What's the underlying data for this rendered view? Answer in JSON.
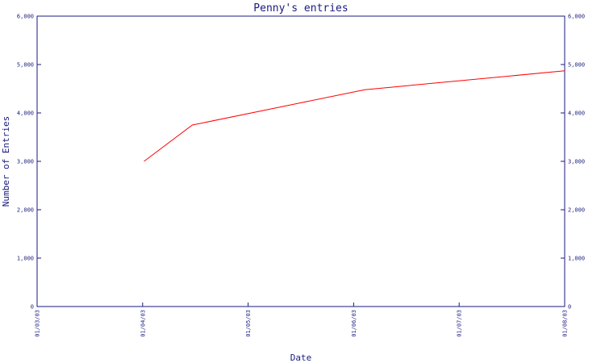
{
  "chart_data": {
    "type": "line",
    "title": "Penny's entries",
    "xlabel": "Date",
    "ylabel": "Number of Entries",
    "x_ticks": [
      "01/03/03",
      "01/04/03",
      "01/05/03",
      "01/06/03",
      "01/07/03",
      "01/08/03"
    ],
    "y_ticks": [
      "0",
      "1,000",
      "2,000",
      "3,000",
      "4,000",
      "5,000",
      "6,000"
    ],
    "ylim": [
      0,
      6000
    ],
    "xlim": [
      "2003-03-01",
      "2003-08-01"
    ],
    "grid": false,
    "colors": {
      "axis": "#1a1a80",
      "series": "#ff0000"
    },
    "series": [
      {
        "x": [
          "2003-04-01",
          "2003-04-15",
          "2003-06-04",
          "2003-08-01"
        ],
        "values": [
          3000,
          3750,
          4480,
          4870
        ]
      }
    ]
  }
}
